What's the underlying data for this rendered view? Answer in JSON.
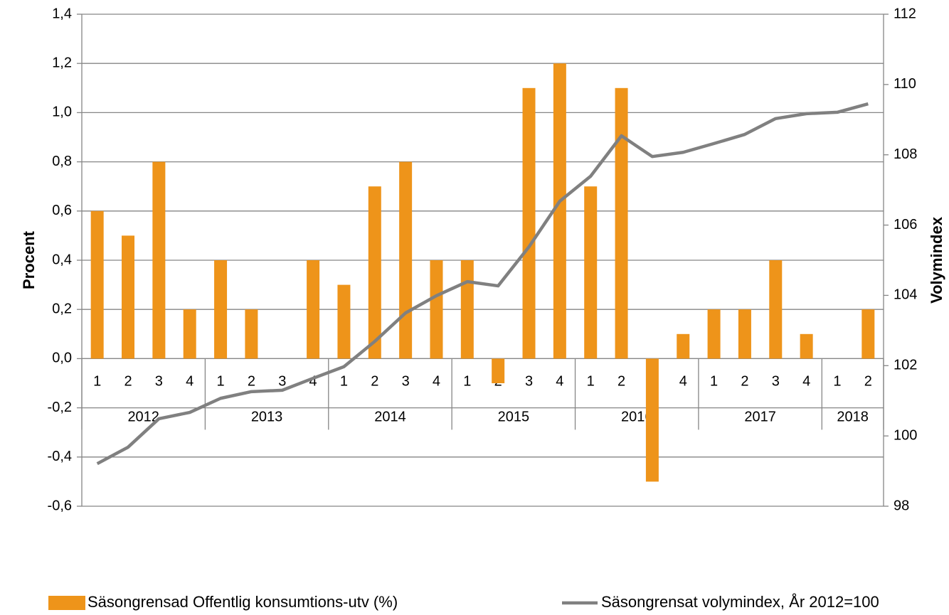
{
  "chart_data": {
    "type": "bar_line",
    "y_label": "Procent",
    "y2_label": "Volymindex",
    "categories": [
      "1",
      "2",
      "3",
      "4",
      "1",
      "2",
      "3",
      "4",
      "1",
      "2",
      "3",
      "4",
      "1",
      "2",
      "3",
      "4",
      "1",
      "2",
      "3",
      "4",
      "1",
      "2",
      "3",
      "4",
      "1",
      "2"
    ],
    "category_groups": [
      "2012",
      "2013",
      "2014",
      "2015",
      "2016",
      "2017",
      "2018"
    ],
    "series": [
      {
        "name": "Säsongrensad Offentlig konsumtions-utv (%)",
        "color": "#ee941a",
        "kind": "bar",
        "values": [
          0.6,
          0.5,
          0.8,
          0.2,
          0.4,
          0.2,
          0,
          0.4,
          0.3,
          0.7,
          0.8,
          0.4,
          0.4,
          -0.1,
          1.1,
          1.2,
          0.7,
          1.1,
          -0.5,
          0.1,
          0.2,
          0.2,
          0.4,
          0.1,
          0,
          0.2
        ]
      },
      {
        "name": "Säsongrensat volymindex, År 2012=100",
        "color": "#808080",
        "kind": "line",
        "axis": "y2",
        "values": [
          99.21,
          99.68,
          100.49,
          100.67,
          101.07,
          101.26,
          101.3,
          101.64,
          101.97,
          102.69,
          103.5,
          103.99,
          104.39,
          104.27,
          105.38,
          106.68,
          107.39,
          108.54,
          107.95,
          108.07,
          108.32,
          108.58,
          109.03,
          109.17,
          109.21,
          109.45
        ]
      }
    ],
    "ylim": [
      -0.6,
      1.4
    ],
    "yticks": [
      {
        "value": -0.6,
        "label": "-0,6"
      },
      {
        "value": -0.4,
        "label": "-0,4"
      },
      {
        "value": -0.2,
        "label": "-0,2"
      },
      {
        "value": 0,
        "label": "0,0"
      },
      {
        "value": 0.2,
        "label": "0,2"
      },
      {
        "value": 0.4,
        "label": "0,4"
      },
      {
        "value": 0.6,
        "label": "0,6"
      },
      {
        "value": 0.8,
        "label": "0,8"
      },
      {
        "value": 1.0,
        "label": "1,0"
      },
      {
        "value": 1.2,
        "label": "1,2"
      },
      {
        "value": 1.4,
        "label": "1,4"
      }
    ],
    "y2lim": [
      98,
      112
    ],
    "y2ticks": [
      98,
      100,
      102,
      104,
      106,
      108,
      110,
      112
    ],
    "grid": true,
    "legend": "bottom"
  }
}
